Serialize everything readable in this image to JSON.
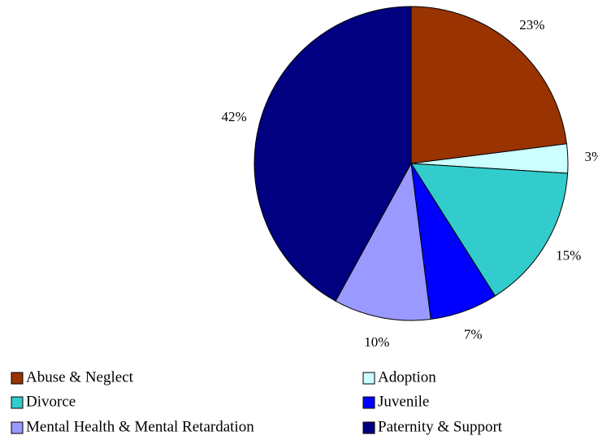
{
  "chart_data": {
    "type": "pie",
    "categories": [
      "Abuse & Neglect",
      "Adoption",
      "Divorce",
      "Juvenile",
      "Mental Health & Mental Retardation",
      "Paternity & Support"
    ],
    "values": [
      23,
      3,
      15,
      7,
      10,
      42
    ],
    "value_labels": [
      "23%",
      "3%",
      "15%",
      "7%",
      "10%",
      "42%"
    ],
    "colors": [
      "#993300",
      "#ccffff",
      "#33cccc",
      "#0000ff",
      "#9999ff",
      "#000080"
    ],
    "legend": "bottom"
  }
}
